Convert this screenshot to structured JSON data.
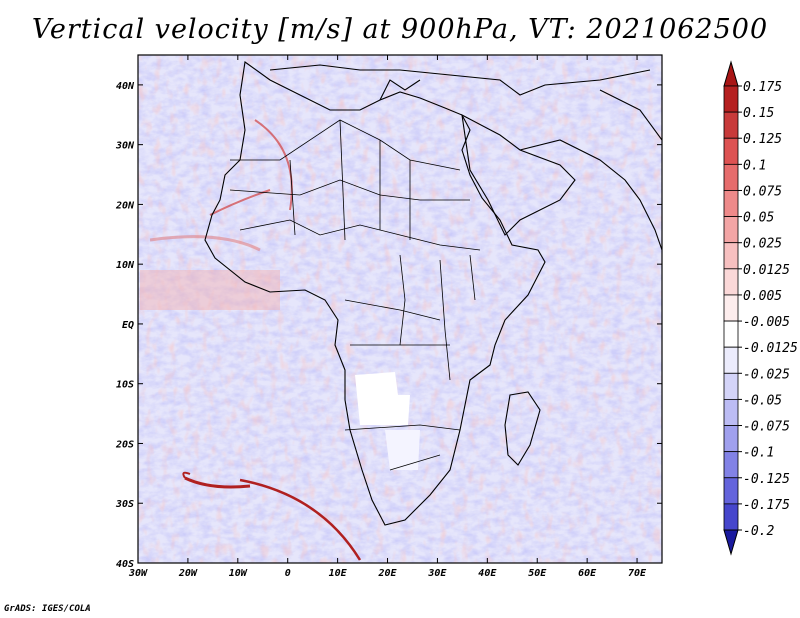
{
  "title": "Vertical velocity [m/s] at 900hPa, VT: 2021062500",
  "credit": "GrADS: IGES/COLA",
  "map": {
    "lon_range": [
      -30,
      75
    ],
    "lat_range": [
      -40,
      45
    ],
    "x_ticks": [
      {
        "lon": -30,
        "label": "30W"
      },
      {
        "lon": -20,
        "label": "20W"
      },
      {
        "lon": -10,
        "label": "10W"
      },
      {
        "lon": 0,
        "label": "0"
      },
      {
        "lon": 10,
        "label": "10E"
      },
      {
        "lon": 20,
        "label": "20E"
      },
      {
        "lon": 30,
        "label": "30E"
      },
      {
        "lon": 40,
        "label": "40E"
      },
      {
        "lon": 50,
        "label": "50E"
      },
      {
        "lon": 60,
        "label": "60E"
      },
      {
        "lon": 70,
        "label": "70E"
      }
    ],
    "y_ticks": [
      {
        "lat": 40,
        "label": "40N"
      },
      {
        "lat": 30,
        "label": "30N"
      },
      {
        "lat": 20,
        "label": "20N"
      },
      {
        "lat": 10,
        "label": "10N"
      },
      {
        "lat": 0,
        "label": "EQ"
      },
      {
        "lat": -10,
        "label": "10S"
      },
      {
        "lat": -20,
        "label": "20S"
      },
      {
        "lat": -30,
        "label": "30S"
      },
      {
        "lat": -40,
        "label": "40S"
      }
    ]
  },
  "colorbar": {
    "levels": [
      {
        "label": "0.175",
        "color": "#b52020"
      },
      {
        "label": "0.15",
        "color": "#c83a3a"
      },
      {
        "label": "0.125",
        "color": "#dd5252"
      },
      {
        "label": "0.1",
        "color": "#e66c6c"
      },
      {
        "label": "0.075",
        "color": "#ee8a8a"
      },
      {
        "label": "0.05",
        "color": "#f3a5a5"
      },
      {
        "label": "0.025",
        "color": "#f7c0c0"
      },
      {
        "label": "0.0125",
        "color": "#fbd8d8"
      },
      {
        "label": "0.005",
        "color": "#fdeded"
      },
      {
        "label": "-0.005",
        "color": "#ffffff"
      },
      {
        "label": "-0.0125",
        "color": "#ececfc"
      },
      {
        "label": "-0.025",
        "color": "#d4d4f8"
      },
      {
        "label": "-0.05",
        "color": "#bcbcf4"
      },
      {
        "label": "-0.075",
        "color": "#a0a0ee"
      },
      {
        "label": "-0.1",
        "color": "#8282e6"
      },
      {
        "label": "-0.125",
        "color": "#6464dc"
      },
      {
        "label": "-0.175",
        "color": "#4646cc"
      },
      {
        "label": "-0.2",
        "color": "#2c2cb8"
      }
    ],
    "top_color": "#a81515",
    "bottom_color": "#1a1a9e"
  }
}
